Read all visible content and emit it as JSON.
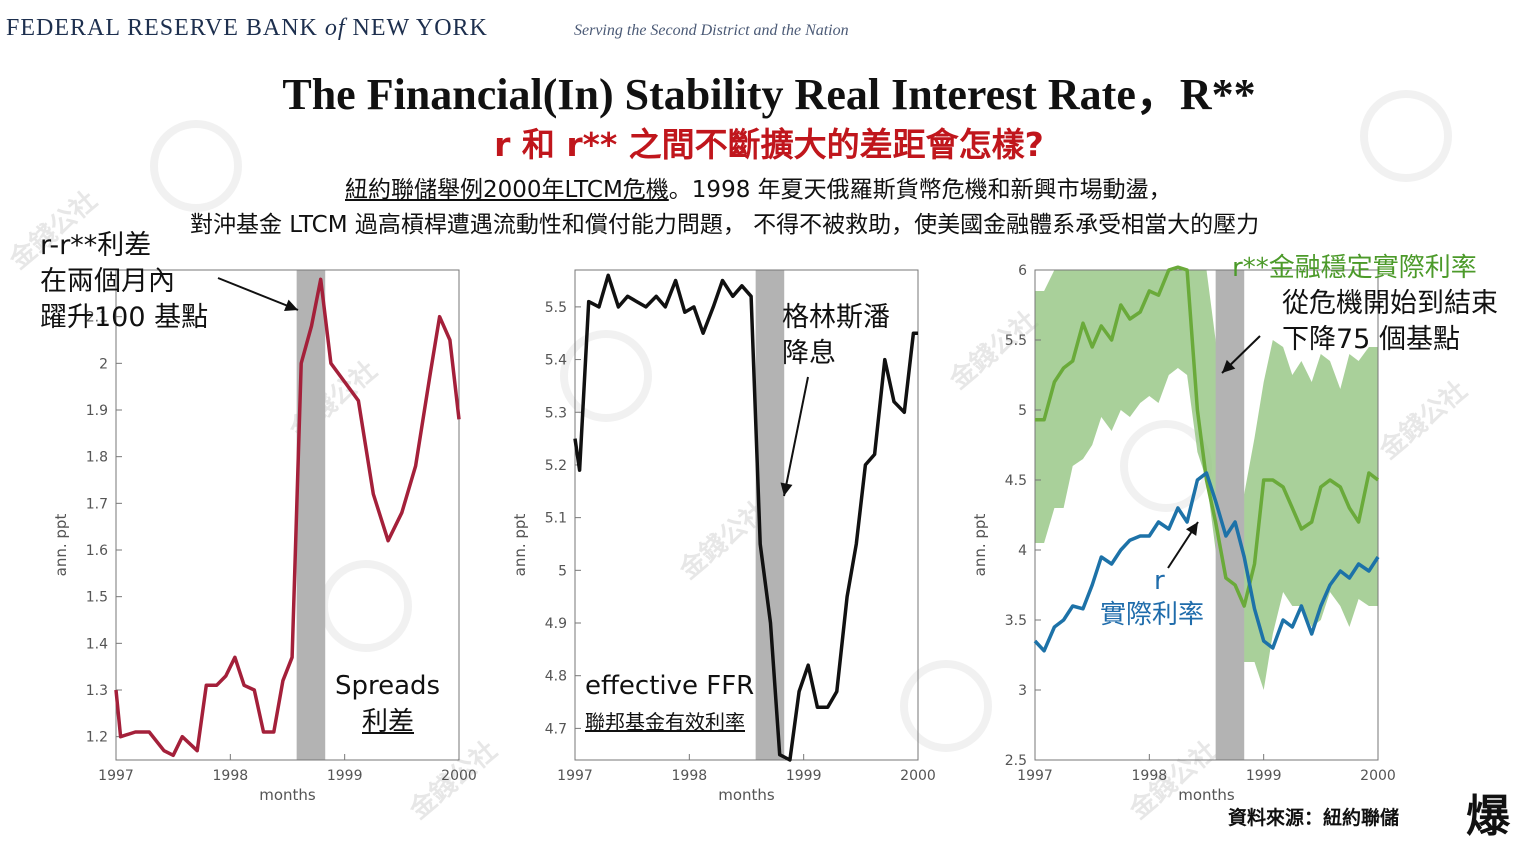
{
  "header": {
    "bank_pre": "FEDERAL RESERVE BANK ",
    "bank_of": "of",
    "bank_post": " NEW YORK",
    "tagline": "Serving the Second District and the Nation"
  },
  "title": "The Financial(In) Stability Real Interest Rate，R**",
  "subtitle": "r 和 r** 之間不斷擴大的差距會怎樣?",
  "description": {
    "line1_underlined": "紐約聯儲舉例2000年LTCM危機",
    "line1_rest": "。1998 年夏天俄羅斯貨幣危機和新興市場動盪，",
    "line2": "對沖基金 LTCM 過高槓桿遭遇流動性和償付能力問題， 不得不被救助，使美國金融體系承受相當大的壓力"
  },
  "annotations": {
    "spread_note": [
      "r-r**利差",
      "在兩個月內",
      "躍升100 基點"
    ],
    "spreads_en": "Spreads",
    "spreads_zh": "利差",
    "ffr_en": "effective FFR",
    "ffr_zh": "聯邦基金有效利率",
    "greenspan": [
      "格林斯潘",
      "降息"
    ],
    "rstar_title": "r**金融穩定實際利率",
    "rstar_note": [
      "從危機開始到結束",
      "下降75 個基點"
    ],
    "r_label": "r",
    "r_zh": "實際利率"
  },
  "source": "資料來源：紐約聯儲",
  "logo_text": "爆",
  "watermark": "金錢公社",
  "colors": {
    "spread_line": "#a4203a",
    "ffr_line": "#111111",
    "rstar_line": "#6aaa3a",
    "rstar_band": "#8cc078",
    "r_line": "#1d72a8",
    "shade": "#b3b3b3",
    "title_red": "#c0161c",
    "rstar_label": "#4c9a2a",
    "r_label": "#1f6cab"
  },
  "chart_data": [
    {
      "type": "line",
      "xlabel": "months",
      "ylabel": "ann. ppt",
      "xticks": [
        "1997",
        "1998",
        "1999",
        "2000"
      ],
      "xlim": [
        1997.0,
        2000.0
      ],
      "ylim": [
        1.15,
        2.2
      ],
      "yticks": [
        "1.2",
        "1.3",
        "1.4",
        "1.5",
        "1.6",
        "1.7",
        "1.8",
        "1.9",
        "2",
        "2.1"
      ],
      "shaded_period": [
        1998.58,
        1998.83
      ],
      "series": [
        {
          "x": [
            1997.0,
            1997.04,
            1997.17,
            1997.29,
            1997.42,
            1997.5,
            1997.58,
            1997.71,
            1997.79,
            1997.88,
            1997.96,
            1998.04,
            1998.12,
            1998.21,
            1998.29,
            1998.38,
            1998.46,
            1998.54,
            1998.62,
            1998.71,
            1998.79,
            1998.88,
            1999.0,
            1999.12,
            1999.25,
            1999.38,
            1999.5,
            1999.62,
            1999.75,
            1999.83,
            1999.92,
            2000.0
          ],
          "values": [
            1.3,
            1.2,
            1.21,
            1.21,
            1.17,
            1.16,
            1.2,
            1.17,
            1.31,
            1.31,
            1.33,
            1.37,
            1.31,
            1.3,
            1.21,
            1.21,
            1.32,
            1.37,
            2.0,
            2.08,
            2.18,
            2.0,
            1.96,
            1.92,
            1.72,
            1.62,
            1.68,
            1.78,
            1.98,
            2.1,
            2.05,
            1.88
          ]
        }
      ]
    },
    {
      "type": "line",
      "xlabel": "months",
      "ylabel": "ann. ppt",
      "xticks": [
        "1997",
        "1998",
        "1999",
        "2000"
      ],
      "xlim": [
        1997.0,
        2000.0
      ],
      "ylim": [
        4.64,
        5.57
      ],
      "yticks": [
        "4.7",
        "4.8",
        "4.9",
        "5",
        "5.1",
        "5.2",
        "5.3",
        "5.4",
        "5.5"
      ],
      "shaded_period": [
        1998.58,
        1998.83
      ],
      "series": [
        {
          "x": [
            1997.0,
            1997.04,
            1997.12,
            1997.21,
            1997.29,
            1997.38,
            1997.46,
            1997.54,
            1997.62,
            1997.71,
            1997.79,
            1997.88,
            1997.96,
            1998.04,
            1998.12,
            1998.21,
            1998.29,
            1998.38,
            1998.46,
            1998.54,
            1998.62,
            1998.71,
            1998.79,
            1998.88,
            1998.96,
            1999.04,
            1999.12,
            1999.21,
            1999.29,
            1999.38,
            1999.46,
            1999.54,
            1999.62,
            1999.71,
            1999.79,
            1999.88,
            1999.96,
            2000.0
          ],
          "values": [
            5.25,
            5.19,
            5.51,
            5.5,
            5.56,
            5.5,
            5.52,
            5.51,
            5.5,
            5.52,
            5.5,
            5.55,
            5.49,
            5.5,
            5.45,
            5.5,
            5.55,
            5.52,
            5.54,
            5.52,
            5.05,
            4.9,
            4.65,
            4.64,
            4.77,
            4.82,
            4.74,
            4.74,
            4.77,
            4.95,
            5.05,
            5.2,
            5.22,
            5.4,
            5.32,
            5.3,
            5.45,
            5.45
          ]
        }
      ]
    },
    {
      "type": "line",
      "xlabel": "months",
      "ylabel": "ann. ppt",
      "xticks": [
        "1997",
        "1998",
        "1999",
        "2000"
      ],
      "xlim": [
        1997.0,
        2000.0
      ],
      "ylim": [
        2.5,
        6.0
      ],
      "yticks": [
        "2.5",
        "3",
        "3.5",
        "4",
        "4.5",
        "5",
        "5.5",
        "6"
      ],
      "shaded_period": [
        1998.58,
        1998.83
      ],
      "series": [
        {
          "name": "r**",
          "x": [
            1997.0,
            1997.08,
            1997.17,
            1997.25,
            1997.33,
            1997.42,
            1997.5,
            1997.58,
            1997.67,
            1997.75,
            1997.83,
            1997.92,
            1998.0,
            1998.08,
            1998.17,
            1998.25,
            1998.33,
            1998.42,
            1998.5,
            1998.58,
            1998.67,
            1998.75,
            1998.83,
            1998.92,
            1999.0,
            1999.08,
            1999.17,
            1999.25,
            1999.33,
            1999.42,
            1999.5,
            1999.58,
            1999.67,
            1999.75,
            1999.83,
            1999.92,
            2000.0
          ],
          "values": [
            4.93,
            4.93,
            5.2,
            5.3,
            5.35,
            5.62,
            5.45,
            5.6,
            5.5,
            5.75,
            5.65,
            5.7,
            5.85,
            5.82,
            6.0,
            6.02,
            6.0,
            5.0,
            4.5,
            4.2,
            3.8,
            3.75,
            3.6,
            3.9,
            4.5,
            4.5,
            4.45,
            4.3,
            4.15,
            4.2,
            4.45,
            4.5,
            4.45,
            4.3,
            4.2,
            4.55,
            4.5
          ]
        },
        {
          "name": "r",
          "x": [
            1997.0,
            1997.08,
            1997.17,
            1997.25,
            1997.33,
            1997.42,
            1997.5,
            1997.58,
            1997.67,
            1997.75,
            1997.83,
            1997.92,
            1998.0,
            1998.08,
            1998.17,
            1998.25,
            1998.33,
            1998.42,
            1998.5,
            1998.58,
            1998.67,
            1998.75,
            1998.83,
            1998.92,
            1999.0,
            1999.08,
            1999.17,
            1999.25,
            1999.33,
            1999.42,
            1999.5,
            1999.58,
            1999.67,
            1999.75,
            1999.83,
            1999.92,
            2000.0
          ],
          "values": [
            3.35,
            3.28,
            3.45,
            3.5,
            3.6,
            3.58,
            3.75,
            3.95,
            3.9,
            4.0,
            4.07,
            4.1,
            4.1,
            4.2,
            4.15,
            4.3,
            4.2,
            4.5,
            4.55,
            4.35,
            4.1,
            4.2,
            3.95,
            3.58,
            3.35,
            3.3,
            3.5,
            3.45,
            3.6,
            3.4,
            3.6,
            3.75,
            3.85,
            3.8,
            3.9,
            3.85,
            3.95
          ]
        },
        {
          "name": "r** band lower",
          "x": [
            1997.0,
            1997.08,
            1997.17,
            1997.25,
            1997.33,
            1997.42,
            1997.5,
            1997.58,
            1997.67,
            1997.75,
            1997.83,
            1997.92,
            1998.0,
            1998.08,
            1998.17,
            1998.25,
            1998.33,
            1998.42,
            1998.5,
            1998.58,
            1998.67,
            1998.75,
            1998.83,
            1998.92,
            1999.0,
            1999.08,
            1999.17,
            1999.25,
            1999.33,
            1999.42,
            1999.5,
            1999.58,
            1999.67,
            1999.75,
            1999.83,
            1999.92,
            2000.0
          ],
          "values": [
            4.05,
            4.05,
            4.3,
            4.3,
            4.6,
            4.65,
            4.75,
            4.95,
            4.85,
            5.0,
            4.95,
            5.05,
            5.1,
            5.05,
            5.25,
            5.3,
            5.25,
            4.7,
            4.5,
            4.0,
            3.4,
            3.3,
            3.2,
            3.2,
            3.0,
            3.4,
            3.7,
            3.6,
            3.6,
            3.45,
            3.5,
            3.7,
            3.6,
            3.45,
            3.65,
            3.6,
            3.6
          ]
        },
        {
          "name": "r** band upper",
          "x": [
            1997.0,
            1997.08,
            1997.17,
            1997.25,
            1997.33,
            1997.42,
            1997.5,
            1997.58,
            1997.67,
            1997.75,
            1997.83,
            1997.92,
            1998.0,
            1998.08,
            1998.17,
            1998.25,
            1998.33,
            1998.42,
            1998.5,
            1998.58,
            1998.67,
            1998.75,
            1998.83,
            1998.92,
            1999.0,
            1999.08,
            1999.17,
            1999.25,
            1999.33,
            1999.42,
            1999.5,
            1999.58,
            1999.67,
            1999.75,
            1999.83,
            1999.92,
            2000.0
          ],
          "values": [
            5.85,
            5.85,
            6.0,
            6.0,
            6.0,
            6.0,
            6.0,
            6.0,
            6.0,
            6.0,
            6.0,
            6.0,
            6.0,
            6.0,
            6.0,
            6.0,
            6.0,
            6.0,
            6.0,
            5.5,
            5.0,
            4.6,
            4.4,
            4.8,
            5.2,
            5.5,
            5.45,
            5.25,
            5.35,
            5.2,
            5.4,
            5.35,
            5.15,
            5.4,
            5.35,
            5.45,
            5.45
          ]
        }
      ]
    }
  ]
}
